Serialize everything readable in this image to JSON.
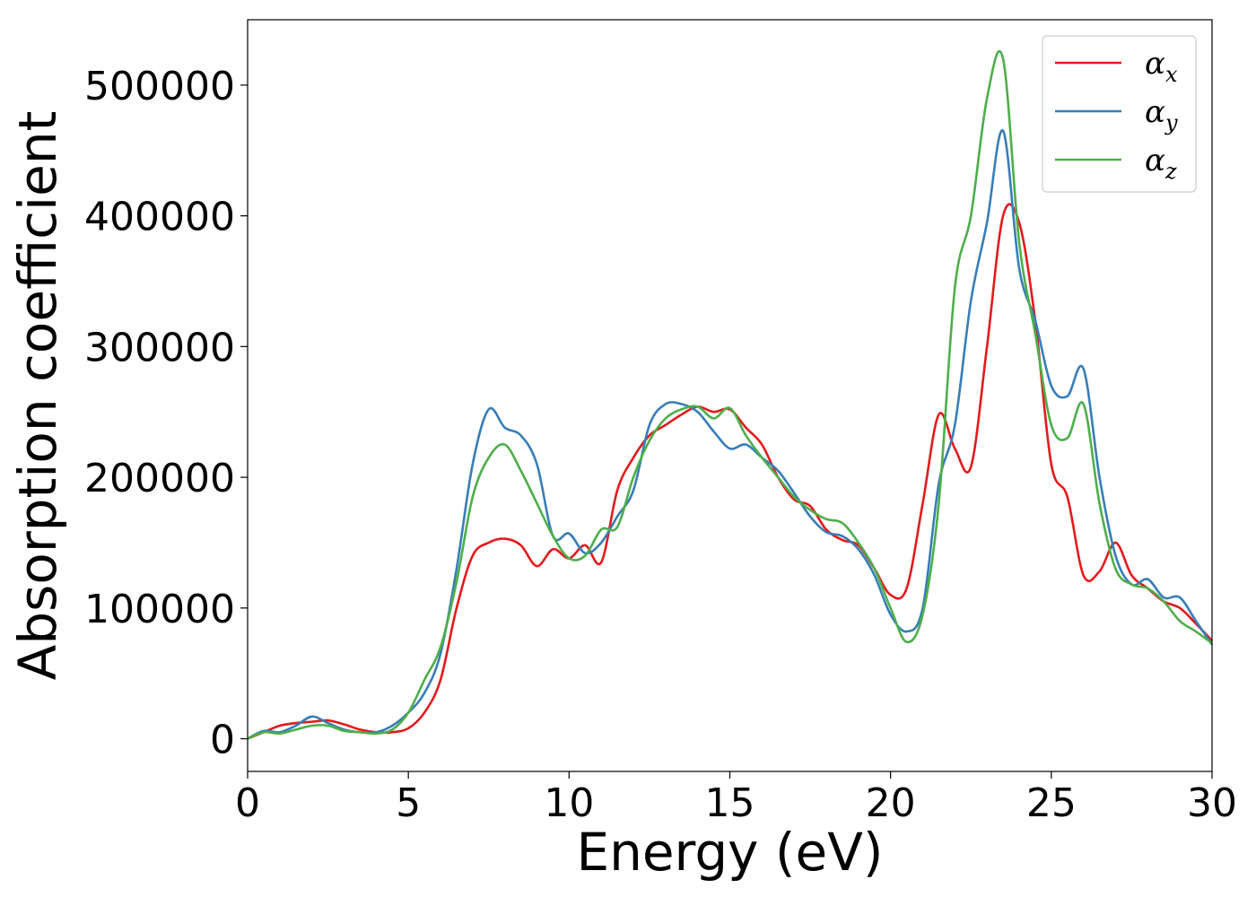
{
  "chart_data": {
    "type": "line",
    "xlabel": "Energy (eV)",
    "ylabel": "Absorption coefficient",
    "xlim": [
      0,
      30
    ],
    "ylim": [
      -25000,
      550000
    ],
    "xticks": [
      0,
      5,
      10,
      15,
      20,
      25,
      30
    ],
    "xtick_labels": [
      "0",
      "5",
      "10",
      "15",
      "20",
      "25",
      "30"
    ],
    "yticks": [
      0,
      100000,
      200000,
      300000,
      400000,
      500000
    ],
    "ytick_labels": [
      "0",
      "100000",
      "200000",
      "300000",
      "400000",
      "500000"
    ],
    "grid": false,
    "legend_position": "top-right",
    "series": [
      {
        "name": "α",
        "subscript": "x",
        "color": "#e41a1c",
        "x": [
          0,
          0.5,
          1,
          1.5,
          2,
          2.5,
          3,
          3.5,
          4,
          4.5,
          5,
          5.5,
          6,
          6.5,
          7,
          7.5,
          8,
          8.5,
          9,
          9.5,
          10,
          10.5,
          11,
          11.5,
          12,
          12.5,
          13,
          13.5,
          14,
          14.5,
          15,
          15.5,
          16,
          16.5,
          17,
          17.5,
          18,
          18.5,
          19,
          19.5,
          20,
          20.5,
          21,
          21.5,
          22,
          22.5,
          23,
          23.5,
          24,
          24.5,
          25,
          25.5,
          26,
          26.5,
          27,
          27.5,
          28,
          28.5,
          29,
          29.5,
          30
        ],
        "y": [
          0,
          5000,
          10000,
          12000,
          13000,
          14000,
          11000,
          7000,
          5000,
          5000,
          8000,
          20000,
          45000,
          100000,
          140000,
          150000,
          153000,
          148000,
          132000,
          145000,
          138000,
          148000,
          135000,
          190000,
          215000,
          232000,
          240000,
          248000,
          254000,
          250000,
          252000,
          238000,
          225000,
          200000,
          183000,
          178000,
          160000,
          152000,
          148000,
          130000,
          110000,
          115000,
          180000,
          248000,
          222000,
          208000,
          300000,
          400000,
          395000,
          320000,
          210000,
          185000,
          125000,
          128000,
          150000,
          125000,
          115000,
          105000,
          100000,
          88000,
          75000
        ]
      },
      {
        "name": "α",
        "subscript": "y",
        "color": "#377eb8",
        "x": [
          0,
          0.5,
          1,
          1.5,
          2,
          2.5,
          3,
          3.5,
          4,
          4.5,
          5,
          5.5,
          6,
          6.5,
          7,
          7.5,
          8,
          8.5,
          9,
          9.5,
          10,
          10.5,
          11,
          11.5,
          12,
          12.5,
          13,
          13.5,
          14,
          14.5,
          15,
          15.5,
          16,
          16.5,
          17,
          17.5,
          18,
          18.5,
          19,
          19.5,
          20,
          20.5,
          21,
          21.5,
          22,
          22.5,
          23,
          23.5,
          24,
          24.5,
          25,
          25.5,
          26,
          26.5,
          27,
          27.5,
          28,
          28.5,
          29,
          29.5,
          30
        ],
        "y": [
          0,
          6000,
          5000,
          10000,
          17000,
          12000,
          7000,
          5000,
          5000,
          10000,
          20000,
          35000,
          65000,
          130000,
          210000,
          252000,
          238000,
          232000,
          210000,
          155000,
          157000,
          142000,
          150000,
          170000,
          190000,
          240000,
          256000,
          256000,
          250000,
          235000,
          222000,
          225000,
          215000,
          205000,
          188000,
          170000,
          158000,
          155000,
          145000,
          125000,
          95000,
          82000,
          100000,
          195000,
          240000,
          335000,
          395000,
          465000,
          360000,
          320000,
          270000,
          262000,
          283000,
          200000,
          140000,
          118000,
          122000,
          108000,
          108000,
          90000,
          72000
        ]
      },
      {
        "name": "α",
        "subscript": "z",
        "color": "#4daf4a",
        "x": [
          0,
          0.5,
          1,
          1.5,
          2,
          2.5,
          3,
          3.5,
          4,
          4.5,
          5,
          5.5,
          6,
          6.5,
          7,
          7.5,
          8,
          8.5,
          9,
          9.5,
          10,
          10.5,
          11,
          11.5,
          12,
          12.5,
          13,
          13.5,
          14,
          14.5,
          15,
          15.5,
          16,
          16.5,
          17,
          17.5,
          18,
          18.5,
          19,
          19.5,
          20,
          20.5,
          21,
          21.5,
          22,
          22.5,
          23,
          23.5,
          24,
          24.5,
          25,
          25.5,
          26,
          26.5,
          27,
          27.5,
          28,
          28.5,
          29,
          29.5,
          30
        ],
        "y": [
          0,
          5000,
          4000,
          7000,
          10000,
          10000,
          6000,
          5000,
          4000,
          7000,
          20000,
          45000,
          70000,
          120000,
          185000,
          215000,
          225000,
          205000,
          180000,
          155000,
          138000,
          140000,
          160000,
          162000,
          200000,
          228000,
          245000,
          252000,
          254000,
          245000,
          253000,
          232000,
          215000,
          200000,
          185000,
          175000,
          168000,
          165000,
          150000,
          130000,
          100000,
          74000,
          95000,
          180000,
          345000,
          400000,
          490000,
          520000,
          380000,
          310000,
          240000,
          230000,
          256000,
          180000,
          130000,
          118000,
          115000,
          105000,
          90000,
          82000,
          73000
        ]
      }
    ]
  }
}
